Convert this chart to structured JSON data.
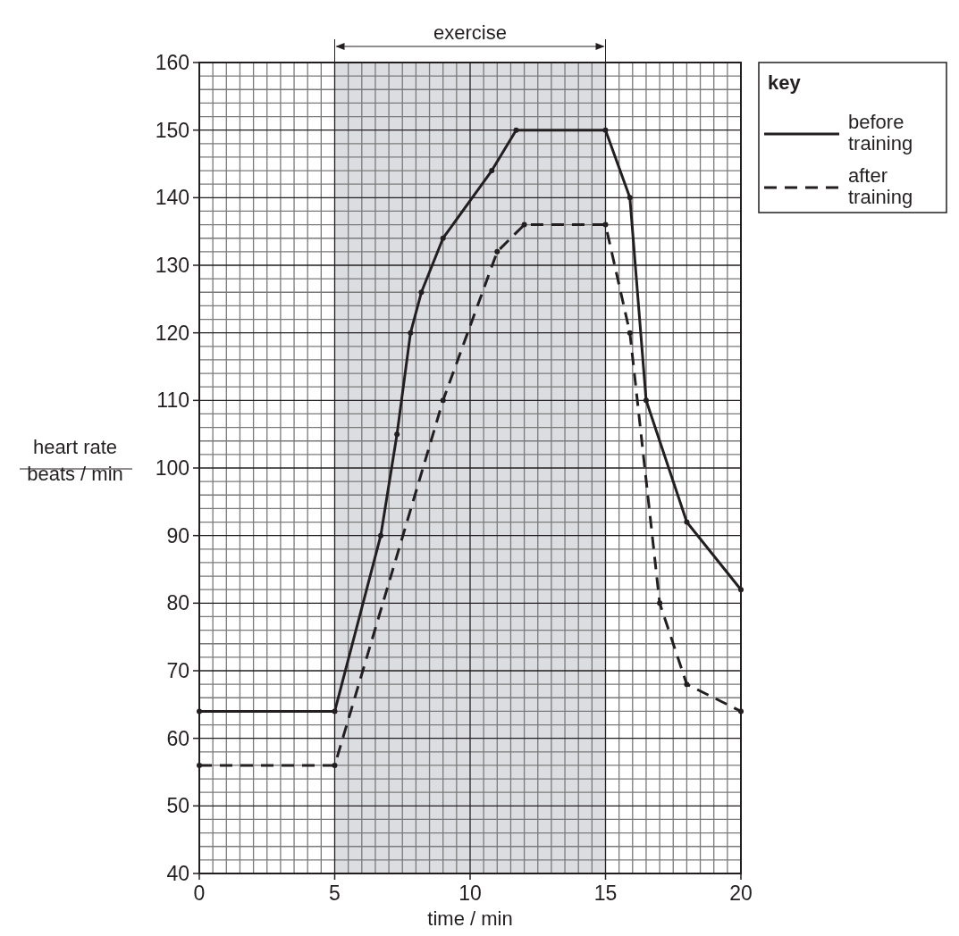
{
  "chart_data": {
    "type": "line",
    "xlabel": "time / min",
    "ylabel": "heart rate\nbeats / min",
    "legend_title": "key",
    "xlim": [
      0,
      20
    ],
    "xticks": [
      0,
      5,
      10,
      15,
      20
    ],
    "ylim": [
      40,
      160
    ],
    "yticks": [
      40,
      50,
      60,
      70,
      80,
      90,
      100,
      110,
      120,
      130,
      140,
      150,
      160
    ],
    "grid": true,
    "legend": "top right",
    "marker": "circle",
    "bands": [
      {
        "axis": "x",
        "from": 5,
        "to": 15,
        "label": "exercise",
        "color": "#dcdde0"
      }
    ],
    "series": [
      {
        "name": "before training",
        "color": "#231f20",
        "line_style": "solid",
        "x": [
          0,
          5,
          6.7,
          7.3,
          7.8,
          8.2,
          9,
          10.8,
          11.7,
          15,
          15.9,
          16.5,
          18,
          20
        ],
        "values": [
          64,
          64,
          90,
          105,
          120,
          126,
          134,
          144,
          150,
          150,
          140,
          110,
          92,
          82
        ]
      },
      {
        "name": "after training",
        "color": "#231f20",
        "line_style": "dashed",
        "x": [
          0,
          5,
          9,
          11,
          12,
          15,
          15.9,
          17,
          18,
          20
        ],
        "values": [
          56,
          56,
          110,
          132,
          136,
          136,
          120,
          80,
          68,
          64
        ]
      }
    ]
  }
}
